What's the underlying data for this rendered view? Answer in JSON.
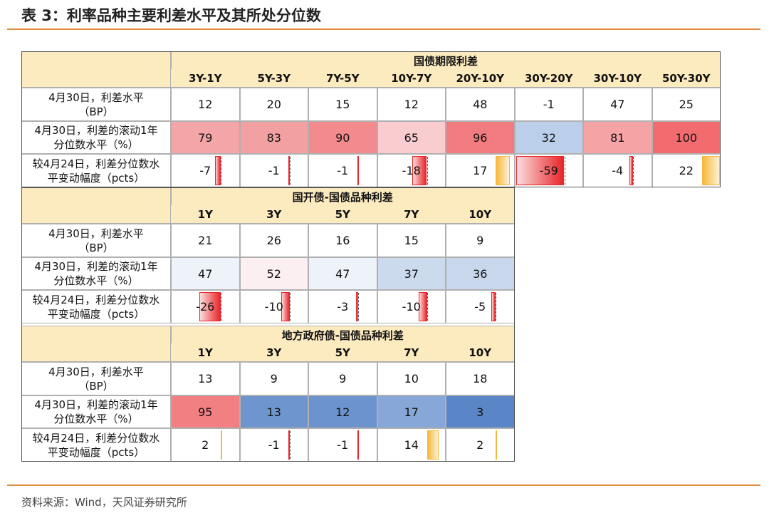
{
  "title": "表 3：利率品种主要利差水平及其所处分位数",
  "bar_colors": {
    "negative": "#e8262b",
    "positive": "#f6b83c"
  },
  "sections": [
    {
      "name": "国债期限利差",
      "columns": [
        "3Y-1Y",
        "5Y-3Y",
        "7Y-5Y",
        "10Y-7Y",
        "20Y-10Y",
        "30Y-20Y",
        "30Y-10Y",
        "50Y-30Y"
      ],
      "rows": [
        {
          "label": [
            "4月30日，利差水平",
            "（BP）"
          ],
          "values": [
            12,
            20,
            15,
            12,
            48,
            -1,
            47,
            25
          ]
        },
        {
          "label": [
            "4月30日，利差的滚动1年",
            "分位数水平（%）"
          ],
          "values": [
            79,
            83,
            90,
            65,
            96,
            32,
            81,
            100
          ],
          "colors": [
            "#f4a5a8",
            "#f3a0a3",
            "#f38a8d",
            "#f9cdd0",
            "#f27b7f",
            "#bccfea",
            "#f6a3a6",
            "#f26b6f"
          ]
        },
        {
          "label": [
            "较4月24日，利差分位数水",
            "平变动幅度（pcts）"
          ],
          "values": [
            -7,
            -1,
            -1,
            -18,
            17,
            -59,
            -4,
            22
          ]
        }
      ]
    },
    {
      "name": "国开债-国债品种利差",
      "columns": [
        "1Y",
        "3Y",
        "5Y",
        "7Y",
        "10Y"
      ],
      "rows": [
        {
          "label": [
            "4月30日，利差水平",
            "（BP）"
          ],
          "values": [
            21,
            26,
            16,
            15,
            9
          ]
        },
        {
          "label": [
            "4月30日，利差的滚动1年",
            "分位数水平（%）"
          ],
          "values": [
            47,
            52,
            47,
            37,
            36
          ],
          "colors": [
            "#eef2f9",
            "#fbeff1",
            "#eef2f9",
            "#ccdaee",
            "#c9d7ec"
          ]
        },
        {
          "label": [
            "较4月24日，利差分位数水",
            "平变动幅度（pcts）"
          ],
          "values": [
            -26,
            -10,
            -3,
            -10,
            -5
          ]
        }
      ]
    },
    {
      "name": "地方政府债-国债品种利差",
      "columns": [
        "1Y",
        "3Y",
        "5Y",
        "7Y",
        "10Y"
      ],
      "rows": [
        {
          "label": [
            "4月30日，利差水平",
            "（BP）"
          ],
          "values": [
            13,
            9,
            9,
            10,
            18
          ]
        },
        {
          "label": [
            "4月30日，利差的滚动1年",
            "分位数水平（%）"
          ],
          "values": [
            95,
            13,
            12,
            17,
            3
          ],
          "colors": [
            "#f27f82",
            "#6f95ce",
            "#6c93cd",
            "#86a7d7",
            "#5a85c6"
          ]
        },
        {
          "label": [
            "较4月24日，利差分位数水",
            "平变动幅度（pcts）"
          ],
          "values": [
            2,
            -1,
            -1,
            14,
            2
          ]
        }
      ]
    }
  ],
  "source": "资料来源：Wind，天风证券研究所"
}
